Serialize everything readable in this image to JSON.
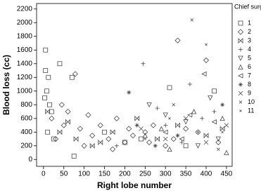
{
  "chart_data": {
    "type": "scatter",
    "x_label": "Right lobe number",
    "y_label": "Blood loss (cc)",
    "legend_title": "Chief surgeon",
    "xlim": [
      -17,
      464
    ],
    "ylim": [
      -100,
      2280
    ],
    "xticks": [
      0,
      50,
      100,
      150,
      200,
      250,
      300,
      350,
      400,
      450
    ],
    "yticks": [
      0,
      200,
      400,
      600,
      800,
      1000,
      1200,
      1400,
      1600,
      1800,
      2000,
      2200
    ],
    "grid": false,
    "series": [
      {
        "name": "1",
        "color": "#444",
        "marker": "square",
        "x": [
          5,
          5,
          8,
          12,
          3,
          15,
          20,
          40,
          70,
          75,
          10,
          25,
          150,
          240,
          310,
          420,
          200,
          350
        ],
        "y": [
          1600,
          1300,
          1000,
          1200,
          900,
          800,
          700,
          1400,
          1200,
          50,
          400,
          300,
          400,
          300,
          1050,
          1000,
          250,
          200
        ]
      },
      {
        "name": "2",
        "color": "#444",
        "marker": "diamond",
        "x": [
          78,
          330,
          20,
          50,
          90,
          120,
          160,
          200,
          250,
          300,
          350,
          400,
          30,
          60,
          100,
          140,
          180,
          220,
          270,
          320,
          380,
          430,
          45,
          110,
          170,
          210,
          260
        ],
        "y": [
          1250,
          1740,
          600,
          500,
          450,
          350,
          300,
          250,
          400,
          200,
          450,
          1450,
          300,
          700,
          200,
          500,
          600,
          350,
          500,
          300,
          400,
          250,
          800,
          650,
          150,
          450,
          250
        ]
      },
      {
        "name": "3",
        "color": "#444",
        "marker": "bowtie",
        "x": [
          10,
          40,
          80,
          120,
          170,
          230,
          280,
          330,
          400,
          440,
          60,
          140
        ],
        "y": [
          700,
          400,
          300,
          200,
          400,
          600,
          300,
          500,
          350,
          450,
          550,
          250
        ]
      },
      {
        "name": "4",
        "color": "#444",
        "marker": "plus",
        "x": [
          245,
          360,
          280,
          300,
          390,
          420,
          180,
          340
        ],
        "y": [
          1400,
          1100,
          750,
          500,
          600,
          700,
          200,
          250
        ]
      },
      {
        "name": "5",
        "color": "#444",
        "marker": "tri-down",
        "x": [
          260,
          300,
          350,
          430,
          380,
          410
        ],
        "y": [
          800,
          650,
          550,
          300,
          200,
          900
        ]
      },
      {
        "name": "6",
        "color": "#444",
        "marker": "tri-up",
        "x": [
          250,
          290,
          310,
          370,
          440,
          450
        ],
        "y": [
          350,
          450,
          150,
          700,
          600,
          100
        ]
      },
      {
        "name": "7",
        "color": "#444",
        "marker": "tri-left",
        "x": [
          395,
          300,
          340,
          420,
          360
        ],
        "y": [
          1250,
          400,
          300,
          550,
          650
        ]
      },
      {
        "name": "8",
        "color": "#444",
        "marker": "star",
        "x": [
          210,
          275,
          330,
          440,
          230
        ],
        "y": [
          980,
          200,
          350,
          800,
          500
        ]
      },
      {
        "name": "9",
        "color": "#444",
        "marker": "x",
        "x": [
          240,
          300,
          350,
          400,
          450
        ],
        "y": [
          450,
          300,
          600,
          250,
          500
        ]
      },
      {
        "name": "10",
        "color": "#444",
        "marker": "dot-x",
        "x": [
          365,
          320,
          380,
          430
        ],
        "y": [
          2040,
          800,
          400,
          150
        ]
      },
      {
        "name": "11",
        "color": "#444",
        "marker": "small-x",
        "x": [
          400,
          250,
          310,
          440
        ],
        "y": [
          1680,
          300,
          600,
          400
        ]
      }
    ]
  }
}
